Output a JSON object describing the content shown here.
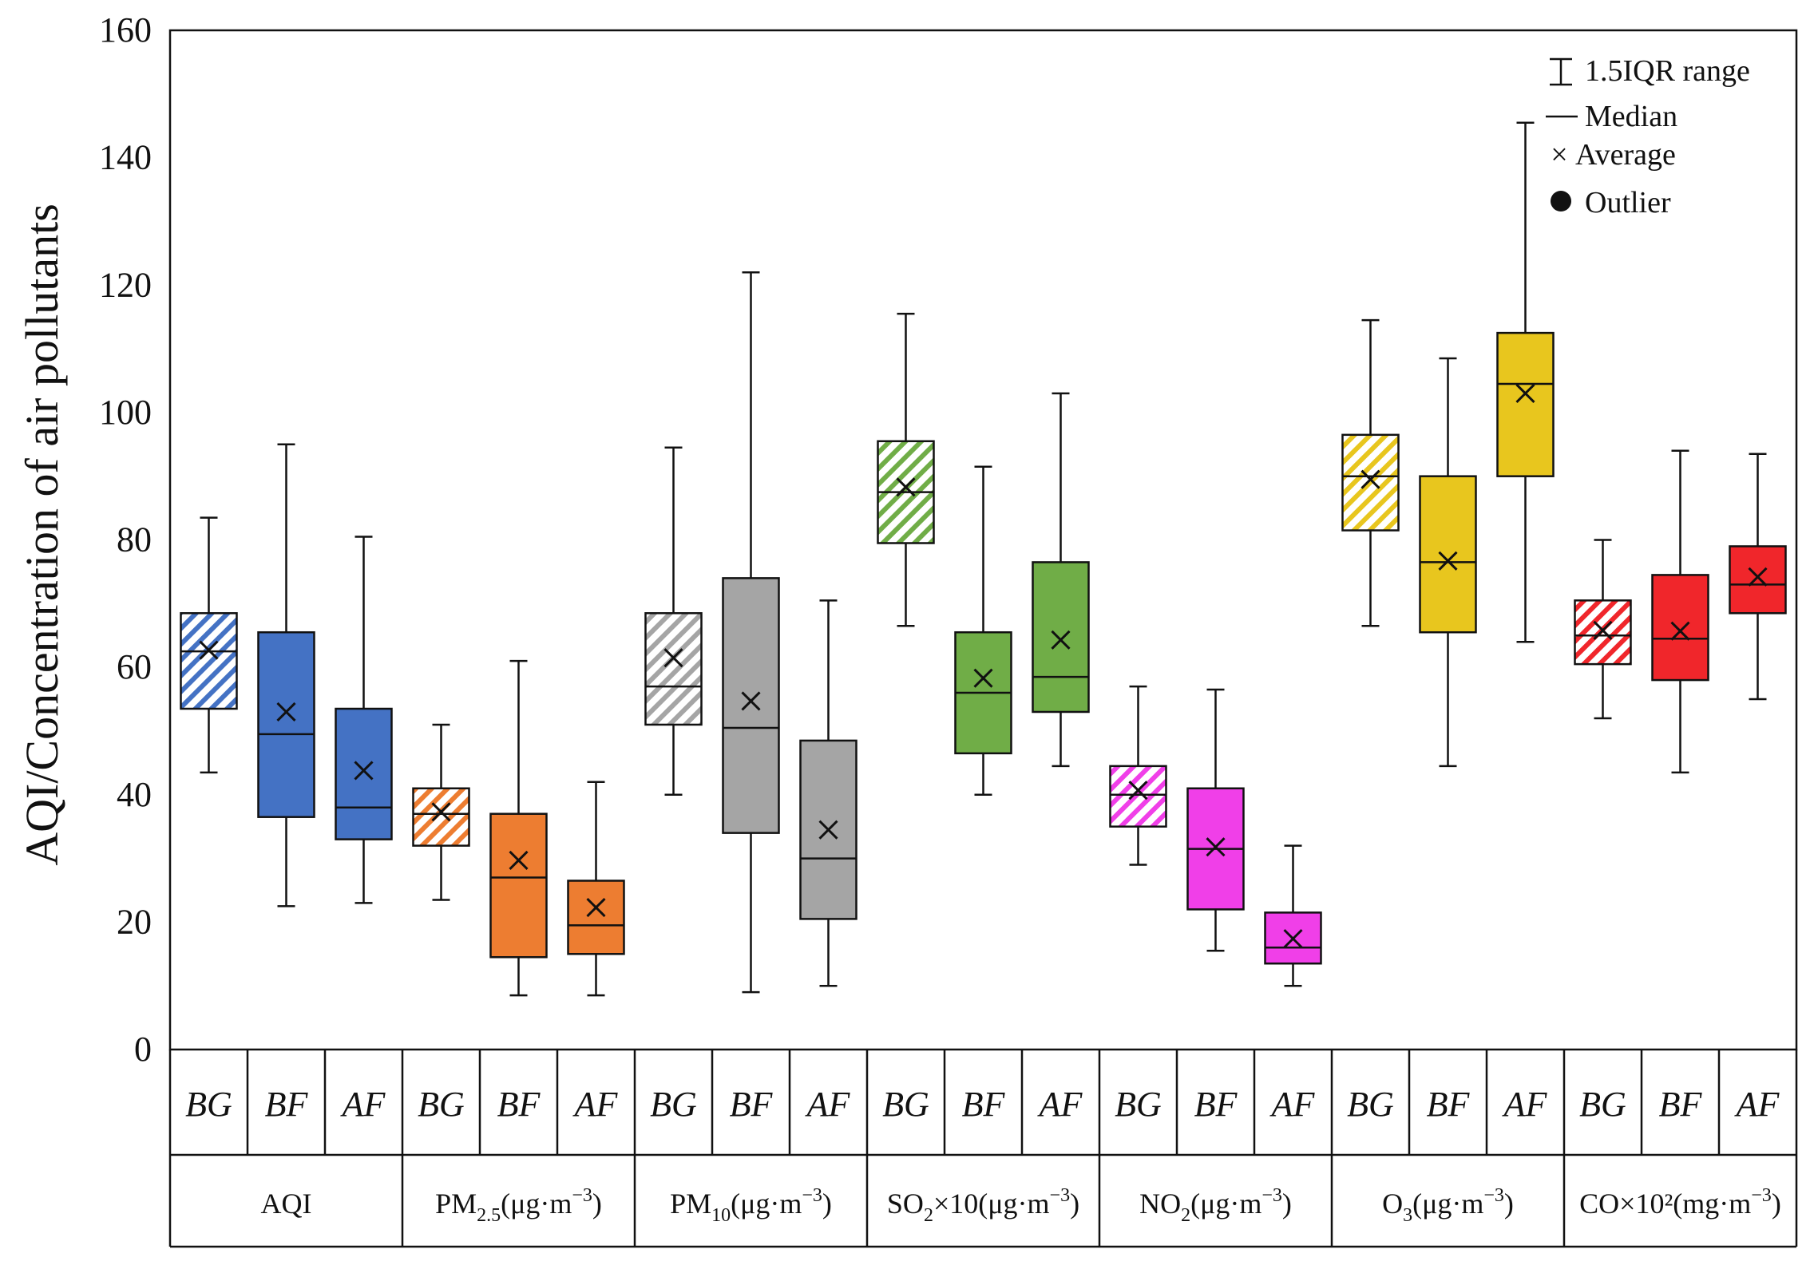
{
  "chart_data": {
    "type": "boxplot",
    "ylabel": "AQI/Concentration of air pollutants",
    "ylim": [
      0,
      160
    ],
    "yticks": [
      "0",
      "20",
      "40",
      "60",
      "80",
      "100",
      "120",
      "140",
      "160"
    ],
    "yticks_num": [
      0,
      20,
      40,
      60,
      80,
      100,
      120,
      140,
      160
    ],
    "legend": {
      "position": "top-right",
      "items": [
        {
          "symbol": "whisker",
          "label": "1.5IQR range"
        },
        {
          "symbol": "line",
          "label": "Median"
        },
        {
          "symbol": "cross",
          "label": "Average"
        },
        {
          "symbol": "dot",
          "label": "Outlier"
        }
      ]
    },
    "period_labels": [
      "BG",
      "BF",
      "AF"
    ],
    "groups": [
      {
        "name": "AQI",
        "label_main": "AQI",
        "label_sub": "",
        "label_suffix": "",
        "label_sup": "",
        "label_close": "",
        "color": "#4472C4",
        "boxes": [
          {
            "period": "BG",
            "hatched": true,
            "whisker_low": 43.5,
            "q1": 53.5,
            "median": 62.5,
            "q3": 68.5,
            "whisker_high": 83.5,
            "mean": 62.7
          },
          {
            "period": "BF",
            "hatched": false,
            "whisker_low": 22.5,
            "q1": 36.5,
            "median": 49.5,
            "q3": 65.5,
            "whisker_high": 95.0,
            "mean": 53.0
          },
          {
            "period": "AF",
            "hatched": false,
            "whisker_low": 23.0,
            "q1": 33.0,
            "median": 38.0,
            "q3": 53.5,
            "whisker_high": 80.5,
            "mean": 43.8
          }
        ]
      },
      {
        "name": "PM2.5",
        "label_main": "PM",
        "label_sub": "2.5",
        "label_suffix": "(μg·m",
        "label_sup": "−3",
        "label_close": ")",
        "color": "#ED7D31",
        "boxes": [
          {
            "period": "BG",
            "hatched": true,
            "whisker_low": 23.5,
            "q1": 32.0,
            "median": 37.0,
            "q3": 41.0,
            "whisker_high": 51.0,
            "mean": 37.3
          },
          {
            "period": "BF",
            "hatched": false,
            "whisker_low": 8.5,
            "q1": 14.5,
            "median": 27.0,
            "q3": 37.0,
            "whisker_high": 61.0,
            "mean": 29.7
          },
          {
            "period": "AF",
            "hatched": false,
            "whisker_low": 8.5,
            "q1": 15.0,
            "median": 19.5,
            "q3": 26.5,
            "whisker_high": 42.0,
            "mean": 22.3
          }
        ]
      },
      {
        "name": "PM10",
        "label_main": "PM",
        "label_sub": "10",
        "label_suffix": "(μg·m",
        "label_sup": "−3",
        "label_close": ")",
        "color": "#A5A5A5",
        "boxes": [
          {
            "period": "BG",
            "hatched": true,
            "whisker_low": 40.0,
            "q1": 51.0,
            "median": 57.0,
            "q3": 68.5,
            "whisker_high": 94.5,
            "mean": 61.5
          },
          {
            "period": "BF",
            "hatched": false,
            "whisker_low": 9.0,
            "q1": 34.0,
            "median": 50.5,
            "q3": 74.0,
            "whisker_high": 122.0,
            "mean": 54.7
          },
          {
            "period": "AF",
            "hatched": false,
            "whisker_low": 10.0,
            "q1": 20.5,
            "median": 30.0,
            "q3": 48.5,
            "whisker_high": 70.5,
            "mean": 34.5
          }
        ]
      },
      {
        "name": "SO2x10",
        "label_main": "SO",
        "label_sub": "2",
        "label_suffix": "×10(μg·m",
        "label_sup": "−3",
        "label_close": ")",
        "color": "#70AD47",
        "boxes": [
          {
            "period": "BG",
            "hatched": true,
            "whisker_low": 66.5,
            "q1": 79.5,
            "median": 87.5,
            "q3": 95.5,
            "whisker_high": 115.5,
            "mean": 88.3
          },
          {
            "period": "BF",
            "hatched": false,
            "whisker_low": 40.0,
            "q1": 46.5,
            "median": 56.0,
            "q3": 65.5,
            "whisker_high": 91.5,
            "mean": 58.3
          },
          {
            "period": "AF",
            "hatched": false,
            "whisker_low": 44.5,
            "q1": 53.0,
            "median": 58.5,
            "q3": 76.5,
            "whisker_high": 103.0,
            "mean": 64.3
          }
        ]
      },
      {
        "name": "NO2",
        "label_main": "NO",
        "label_sub": "2",
        "label_suffix": "(μg·m",
        "label_sup": "−3",
        "label_close": ")",
        "color": "#F03FE8",
        "boxes": [
          {
            "period": "BG",
            "hatched": true,
            "whisker_low": 29.0,
            "q1": 35.0,
            "median": 40.0,
            "q3": 44.5,
            "whisker_high": 57.0,
            "mean": 40.7
          },
          {
            "period": "BF",
            "hatched": false,
            "whisker_low": 15.5,
            "q1": 22.0,
            "median": 31.5,
            "q3": 41.0,
            "whisker_high": 56.5,
            "mean": 31.8
          },
          {
            "period": "AF",
            "hatched": false,
            "whisker_low": 10.0,
            "q1": 13.5,
            "median": 16.0,
            "q3": 21.5,
            "whisker_high": 32.0,
            "mean": 17.4
          }
        ]
      },
      {
        "name": "O3",
        "label_main": "O",
        "label_sub": "3",
        "label_suffix": "(μg·m",
        "label_sup": "−3",
        "label_close": ")",
        "color": "#E8C61E",
        "boxes": [
          {
            "period": "BG",
            "hatched": true,
            "whisker_low": 66.5,
            "q1": 81.5,
            "median": 90.0,
            "q3": 96.5,
            "whisker_high": 114.5,
            "mean": 89.5
          },
          {
            "period": "BF",
            "hatched": false,
            "whisker_low": 44.5,
            "q1": 65.5,
            "median": 76.5,
            "q3": 90.0,
            "whisker_high": 108.5,
            "mean": 76.7
          },
          {
            "period": "AF",
            "hatched": false,
            "whisker_low": 64.0,
            "q1": 90.0,
            "median": 104.5,
            "q3": 112.5,
            "whisker_high": 145.5,
            "mean": 103.0
          }
        ]
      },
      {
        "name": "COx10^2",
        "label_main": "CO×10²(mg·m",
        "label_sub": "",
        "label_suffix": "",
        "label_sup": "−3",
        "label_close": ")",
        "color": "#F0262B",
        "boxes": [
          {
            "period": "BG",
            "hatched": true,
            "whisker_low": 52.0,
            "q1": 60.5,
            "median": 65.0,
            "q3": 70.5,
            "whisker_high": 80.0,
            "mean": 65.8
          },
          {
            "period": "BF",
            "hatched": false,
            "whisker_low": 43.5,
            "q1": 58.0,
            "median": 64.5,
            "q3": 74.5,
            "whisker_high": 94.0,
            "mean": 65.7
          },
          {
            "period": "AF",
            "hatched": false,
            "whisker_low": 55.0,
            "q1": 68.5,
            "median": 73.0,
            "q3": 79.0,
            "whisker_high": 93.5,
            "mean": 74.2
          }
        ]
      }
    ]
  }
}
